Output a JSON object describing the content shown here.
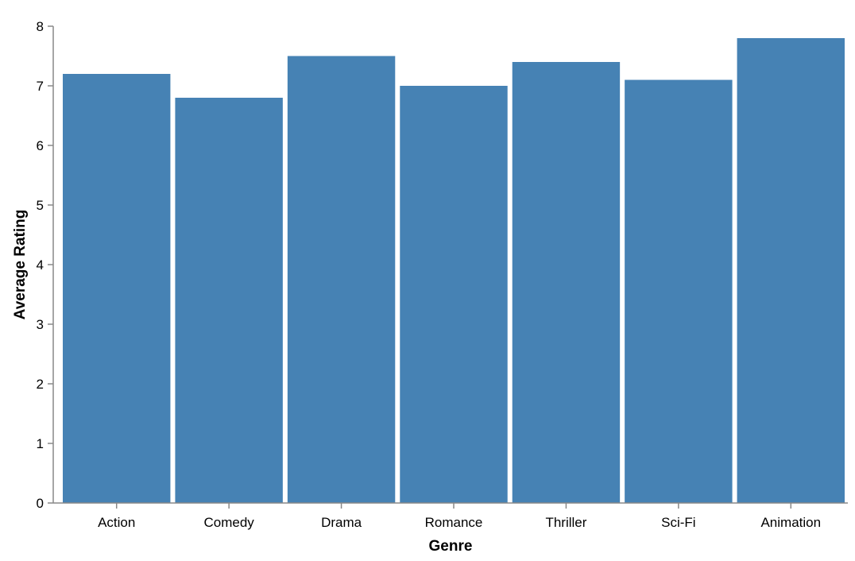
{
  "chart_data": {
    "type": "bar",
    "categories": [
      "Action",
      "Comedy",
      "Drama",
      "Romance",
      "Thriller",
      "Sci-Fi",
      "Animation"
    ],
    "values": [
      7.2,
      6.8,
      7.5,
      7.0,
      7.4,
      7.1,
      7.8
    ],
    "title": "",
    "xlabel": "Genre",
    "ylabel": "Average Rating",
    "ylim": [
      0,
      8
    ],
    "yticks": [
      0,
      1,
      2,
      3,
      4,
      5,
      6,
      7,
      8
    ],
    "grid": false,
    "bar_color": "#4682b4",
    "axis_color": "#888888"
  }
}
